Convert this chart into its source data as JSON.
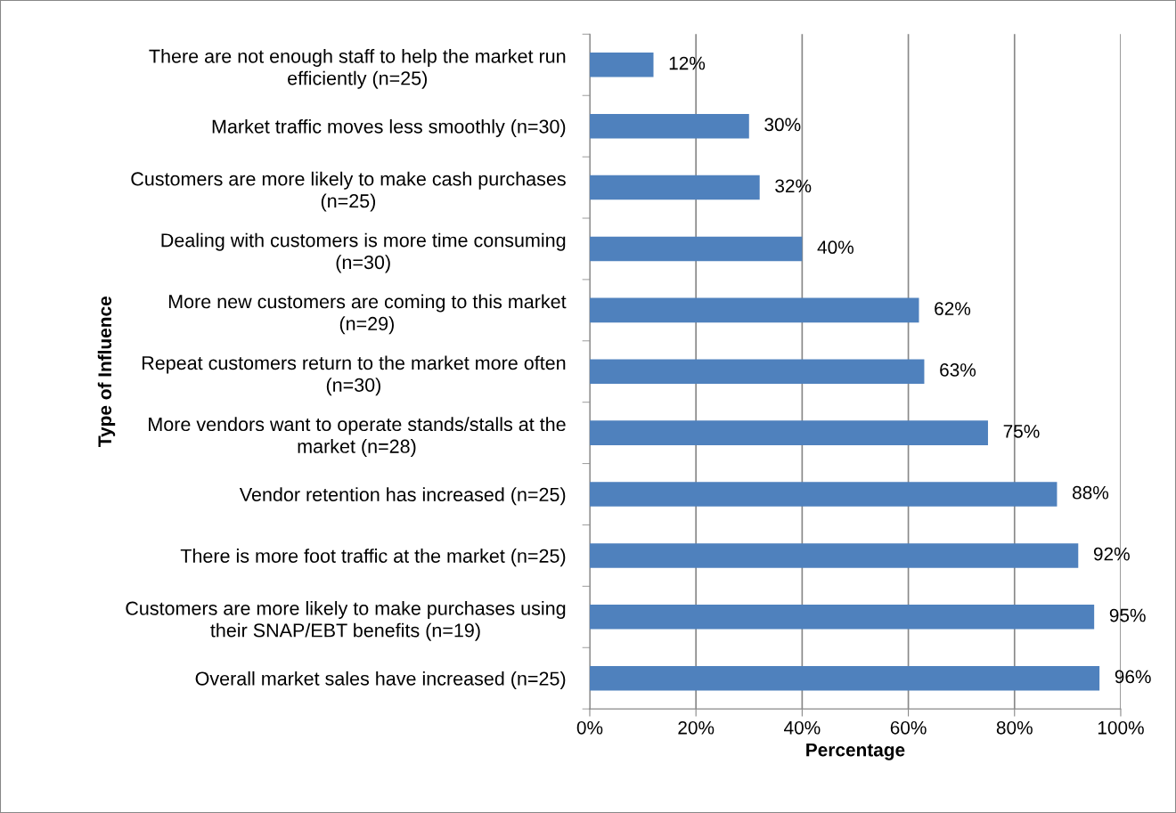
{
  "chart_data": {
    "type": "bar",
    "orientation": "horizontal",
    "xlabel": "Percentage",
    "ylabel": "Type of Influence",
    "categories": [
      "There are not enough staff to help the market run\nefficiently (n=25)",
      "Market traffic moves less smoothly (n=30)",
      "Customers are more likely to make cash purchases\n(n=25)",
      "Dealing with customers is more time consuming\n(n=30)",
      "More new customers are coming to this market\n(n=29)",
      "Repeat customers return to the market more often\n(n=30)",
      "More vendors want to operate stands/stalls at the\nmarket (n=28)",
      "Vendor retention has increased (n=25)",
      "There is more foot traffic at the market (n=25)",
      "Customers are more likely to make purchases using\ntheir SNAP/EBT benefits (n=19)",
      "Overall market sales have increased (n=25)"
    ],
    "values": [
      12,
      30,
      32,
      40,
      62,
      63,
      75,
      88,
      92,
      95,
      96
    ],
    "value_labels": [
      "12%",
      "30%",
      "32%",
      "40%",
      "62%",
      "63%",
      "75%",
      "88%",
      "92%",
      "95%",
      "96%"
    ],
    "color": "#4f81bd",
    "xlim": [
      0,
      100
    ],
    "xticks": [
      {
        "value": 0,
        "label": "0%"
      },
      {
        "value": 20,
        "label": "20%"
      },
      {
        "value": 40,
        "label": "40%"
      },
      {
        "value": 60,
        "label": "60%"
      },
      {
        "value": 80,
        "label": "80%"
      },
      {
        "value": 100,
        "label": "100%"
      }
    ],
    "grid": "x",
    "legend": false
  }
}
